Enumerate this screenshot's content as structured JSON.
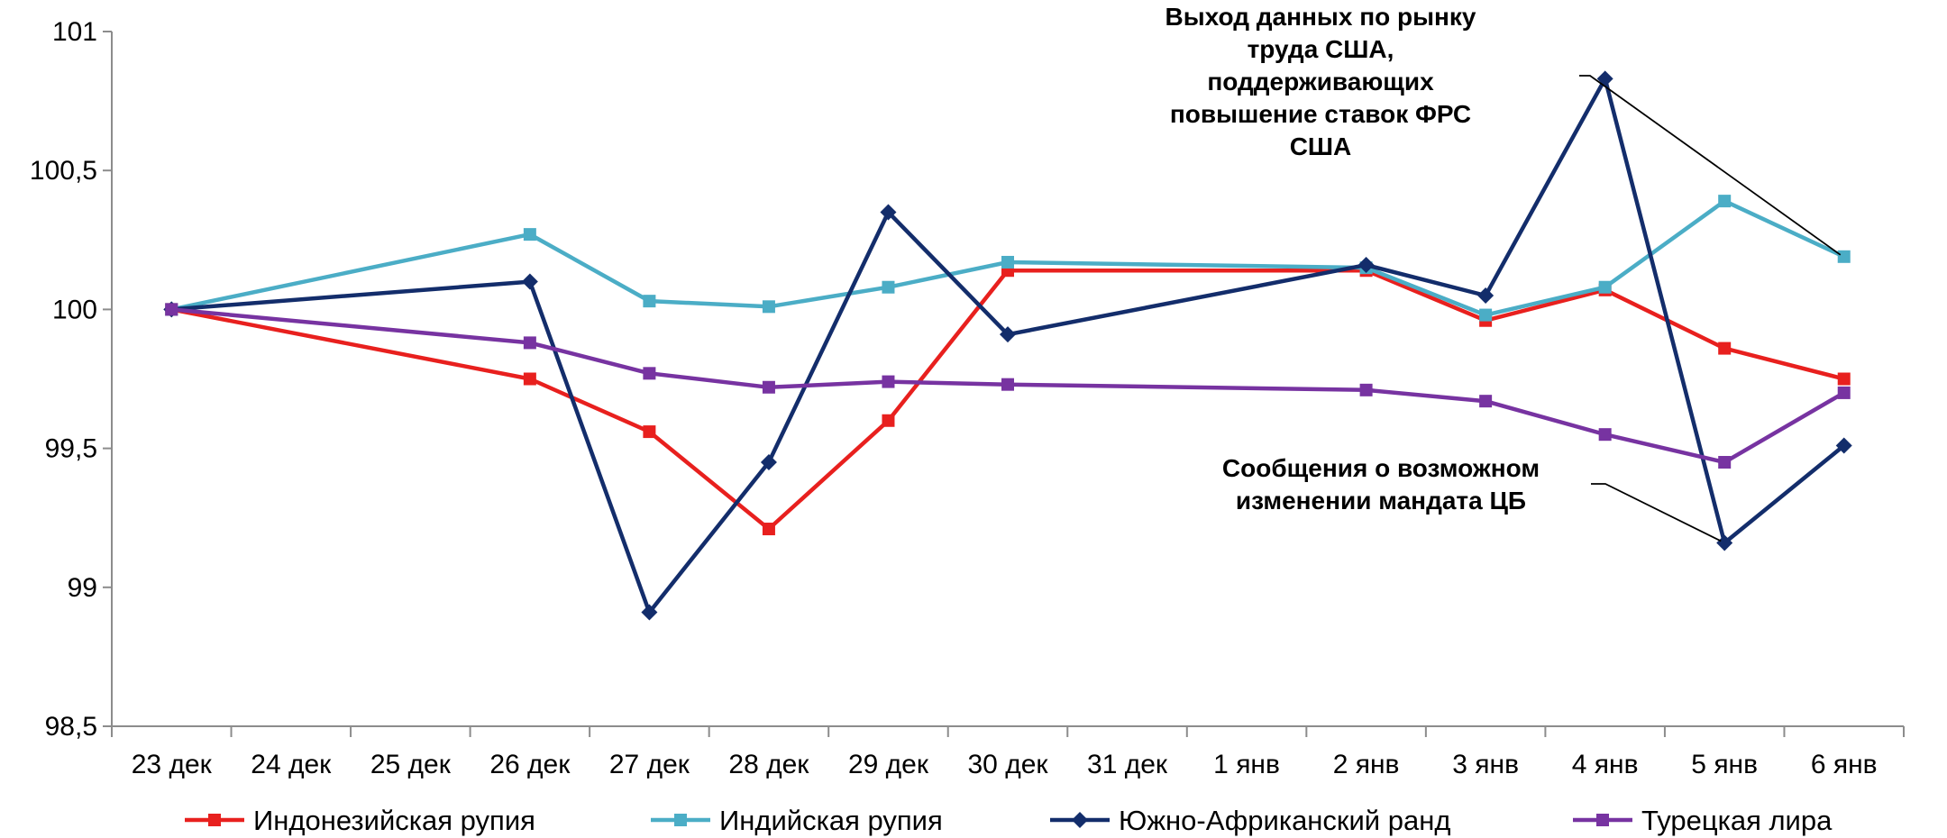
{
  "chart_data": {
    "type": "line",
    "title": "",
    "xlabel": "",
    "ylabel": "",
    "ylim": [
      98.5,
      101
    ],
    "y_ticks": [
      "98,5",
      "99",
      "99,5",
      "100",
      "100,5",
      "101"
    ],
    "y_tick_values": [
      98.5,
      99,
      99.5,
      100,
      100.5,
      101
    ],
    "grid": false,
    "legend_position": "bottom",
    "categories": [
      "23 дек",
      "24 дек",
      "25 дек",
      "26 дек",
      "27 дек",
      "28 дек",
      "29 дек",
      "30 дек",
      "31 дек",
      "1 янв",
      "2 янв",
      "3 янв",
      "4 янв",
      "5 янв",
      "6 янв"
    ],
    "series": [
      {
        "name": "Индонезийская рупия",
        "color": "#e8201e",
        "marker": "square",
        "points": [
          [
            0,
            100.0
          ],
          [
            3,
            99.75
          ],
          [
            4,
            99.56
          ],
          [
            5,
            99.21
          ],
          [
            6,
            99.6
          ],
          [
            7,
            100.14
          ],
          [
            10,
            100.14
          ],
          [
            11,
            99.96
          ],
          [
            12,
            100.07
          ],
          [
            13,
            99.86
          ],
          [
            14,
            99.75
          ]
        ]
      },
      {
        "name": "Индийская рупия",
        "color": "#4badc6",
        "marker": "square",
        "points": [
          [
            0,
            100.0
          ],
          [
            3,
            100.27
          ],
          [
            4,
            100.03
          ],
          [
            5,
            100.01
          ],
          [
            6,
            100.08
          ],
          [
            7,
            100.17
          ],
          [
            10,
            100.15
          ],
          [
            11,
            99.98
          ],
          [
            12,
            100.08
          ],
          [
            13,
            100.39
          ],
          [
            14,
            100.19
          ]
        ]
      },
      {
        "name": "Южно-Африканский ранд",
        "color": "#132d6b",
        "marker": "diamond",
        "points": [
          [
            0,
            100.0
          ],
          [
            3,
            100.1
          ],
          [
            4,
            98.91
          ],
          [
            5,
            99.45
          ],
          [
            6,
            100.35
          ],
          [
            7,
            99.91
          ],
          [
            10,
            100.16
          ],
          [
            11,
            100.05
          ],
          [
            12,
            100.83
          ],
          [
            13,
            99.16
          ],
          [
            14,
            99.51
          ]
        ]
      },
      {
        "name": "Турецкая лира",
        "color": "#7733a1",
        "marker": "square",
        "points": [
          [
            0,
            100.0
          ],
          [
            3,
            99.88
          ],
          [
            4,
            99.77
          ],
          [
            5,
            99.72
          ],
          [
            6,
            99.74
          ],
          [
            7,
            99.73
          ],
          [
            10,
            99.71
          ],
          [
            11,
            99.67
          ],
          [
            12,
            99.55
          ],
          [
            13,
            99.45
          ],
          [
            14,
            99.7
          ]
        ]
      }
    ],
    "annotations": [
      {
        "name": "us-labor-data",
        "lines": [
          "Выход данных по рынку",
          "труда США,",
          "поддерживающих",
          "повышение ставок ФРС",
          "США"
        ],
        "target": [
          14,
          100.19
        ]
      },
      {
        "name": "cb-mandate",
        "lines": [
          "Сообщения о возможном",
          "изменении мандата ЦБ"
        ],
        "target": [
          13,
          99.16
        ]
      }
    ]
  }
}
